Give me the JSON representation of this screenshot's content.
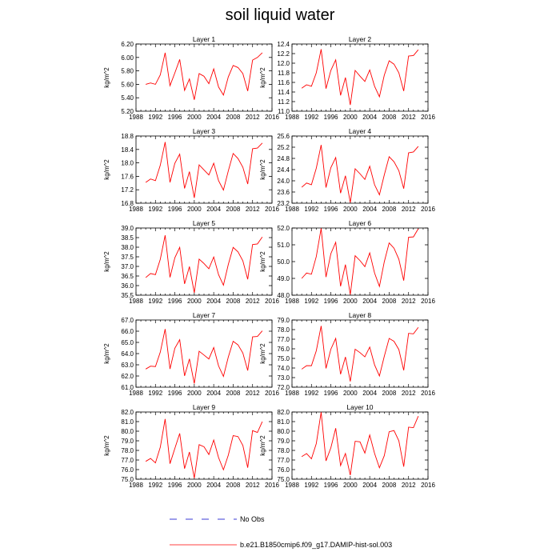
{
  "page_title": "soil liquid water",
  "colors": {
    "series": "#ff0000",
    "obs": "#3b3bd6",
    "axis": "#000000"
  },
  "legend": {
    "obs_label": "No Obs",
    "model_label": "b.e21.B1850cmip6.f09_g17.DAMIP-hist-sol.003"
  },
  "chart_data": [
    {
      "type": "line",
      "title": "Layer 1",
      "ylabel": "kg/m^2",
      "xlim": [
        1988,
        2016
      ],
      "xticks": [
        1988,
        1992,
        1996,
        2000,
        2004,
        2008,
        2012,
        2016
      ],
      "ylim": [
        5.2,
        6.2
      ],
      "yticks": [
        "5.20",
        "5.40",
        "5.60",
        "5.80",
        "6.00",
        "6.20"
      ],
      "x": [
        1990,
        1991,
        1992,
        1993,
        1994,
        1995,
        1996,
        1997,
        1998,
        1999,
        2000,
        2001,
        2002,
        2003,
        2004,
        2005,
        2006,
        2007,
        2008,
        2009,
        2010,
        2011,
        2012,
        2013,
        2014
      ],
      "series": [
        {
          "values": [
            5.6,
            5.62,
            5.6,
            5.74,
            6.07,
            5.58,
            5.77,
            5.97,
            5.51,
            5.68,
            5.37,
            5.76,
            5.72,
            5.61,
            5.83,
            5.56,
            5.44,
            5.71,
            5.88,
            5.85,
            5.76,
            5.5,
            5.96,
            6.0,
            6.07
          ]
        }
      ]
    },
    {
      "type": "line",
      "title": "Layer 2",
      "ylabel": "kg/m^2",
      "xlim": [
        1988,
        2016
      ],
      "xticks": [
        1988,
        1992,
        1996,
        2000,
        2004,
        2008,
        2012,
        2016
      ],
      "ylim": [
        11.0,
        12.4
      ],
      "yticks": [
        "11.0",
        "11.2",
        "11.4",
        "11.6",
        "11.8",
        "12.0",
        "12.2",
        "12.4"
      ],
      "x": [
        1990,
        1991,
        1992,
        1993,
        1994,
        1995,
        1996,
        1997,
        1998,
        1999,
        2000,
        2001,
        2002,
        2003,
        2004,
        2005,
        2006,
        2007,
        2008,
        2009,
        2010,
        2011,
        2012,
        2013,
        2014
      ],
      "series": [
        {
          "values": [
            11.48,
            11.55,
            11.52,
            11.8,
            12.29,
            11.47,
            11.85,
            12.07,
            11.33,
            11.7,
            11.13,
            11.85,
            11.73,
            11.62,
            11.86,
            11.52,
            11.3,
            11.75,
            12.05,
            11.98,
            11.8,
            11.42,
            12.15,
            12.16,
            12.28
          ]
        }
      ]
    },
    {
      "type": "line",
      "title": "Layer 3",
      "ylabel": "kg/m^2",
      "xlim": [
        1988,
        2016
      ],
      "xticks": [
        1988,
        1992,
        1996,
        2000,
        2004,
        2008,
        2012,
        2016
      ],
      "ylim": [
        16.8,
        18.8
      ],
      "yticks": [
        "16.8",
        "17.2",
        "17.6",
        "18.0",
        "18.4",
        "18.8"
      ],
      "x": [
        1990,
        1991,
        1992,
        1993,
        1994,
        1995,
        1996,
        1997,
        1998,
        1999,
        2000,
        2001,
        2002,
        2003,
        2004,
        2005,
        2006,
        2007,
        2008,
        2009,
        2010,
        2011,
        2012,
        2013,
        2014
      ],
      "series": [
        {
          "values": [
            17.42,
            17.52,
            17.47,
            17.93,
            18.62,
            17.42,
            17.99,
            18.26,
            17.24,
            17.74,
            16.96,
            17.94,
            17.79,
            17.64,
            17.99,
            17.47,
            17.19,
            17.76,
            18.28,
            18.13,
            17.87,
            17.37,
            18.42,
            18.44,
            18.59
          ]
        }
      ]
    },
    {
      "type": "line",
      "title": "Layer 4",
      "ylabel": "kg/m^2",
      "xlim": [
        1988,
        2016
      ],
      "xticks": [
        1988,
        1992,
        1996,
        2000,
        2004,
        2008,
        2012,
        2016
      ],
      "ylim": [
        23.2,
        25.6
      ],
      "yticks": [
        "23.2",
        "23.6",
        "24.0",
        "24.4",
        "24.8",
        "25.2",
        "25.6"
      ],
      "x": [
        1990,
        1991,
        1992,
        1993,
        1994,
        1995,
        1996,
        1997,
        1998,
        1999,
        2000,
        2001,
        2002,
        2003,
        2004,
        2005,
        2006,
        2007,
        2008,
        2009,
        2010,
        2011,
        2012,
        2013,
        2014
      ],
      "series": [
        {
          "values": [
            23.77,
            23.92,
            23.86,
            24.45,
            25.28,
            23.76,
            24.47,
            24.83,
            23.56,
            24.18,
            23.22,
            24.43,
            24.25,
            24.05,
            24.52,
            23.86,
            23.5,
            24.21,
            24.86,
            24.68,
            24.36,
            23.72,
            25.0,
            25.03,
            25.23
          ]
        }
      ]
    },
    {
      "type": "line",
      "title": "Layer 5",
      "ylabel": "kg/m^2",
      "xlim": [
        1988,
        2016
      ],
      "xticks": [
        1988,
        1992,
        1996,
        2000,
        2004,
        2008,
        2012,
        2016
      ],
      "ylim": [
        35.5,
        39.0
      ],
      "yticks": [
        "35.5",
        "36.0",
        "36.5",
        "37.0",
        "37.5",
        "38.0",
        "38.5",
        "39.0"
      ],
      "x": [
        1990,
        1991,
        1992,
        1993,
        1994,
        1995,
        1996,
        1997,
        1998,
        1999,
        2000,
        2001,
        2002,
        2003,
        2004,
        2005,
        2006,
        2007,
        2008,
        2009,
        2010,
        2011,
        2012,
        2013,
        2014
      ],
      "series": [
        {
          "values": [
            36.42,
            36.63,
            36.57,
            37.37,
            38.62,
            36.43,
            37.45,
            37.99,
            36.09,
            36.99,
            35.63,
            37.38,
            37.15,
            36.88,
            37.49,
            36.57,
            36.02,
            37.1,
            37.99,
            37.76,
            37.29,
            36.33,
            38.14,
            38.17,
            38.53
          ]
        }
      ]
    },
    {
      "type": "line",
      "title": "Layer 6",
      "ylabel": "kg/m^2",
      "xlim": [
        1988,
        2016
      ],
      "xticks": [
        1988,
        1992,
        1996,
        2000,
        2004,
        2008,
        2012,
        2016
      ],
      "ylim": [
        48.0,
        52.0
      ],
      "yticks": [
        "48.0",
        "49.0",
        "50.0",
        "51.0",
        "52.0"
      ],
      "x": [
        1990,
        1991,
        1992,
        1993,
        1994,
        1995,
        1996,
        1997,
        1998,
        1999,
        2000,
        2001,
        2002,
        2003,
        2004,
        2005,
        2006,
        2007,
        2008,
        2009,
        2010,
        2011,
        2012,
        2013,
        2014
      ],
      "series": [
        {
          "values": [
            49.0,
            49.32,
            49.25,
            50.3,
            51.98,
            49.08,
            50.47,
            51.15,
            48.53,
            49.82,
            48.04,
            50.35,
            50.06,
            49.7,
            50.52,
            49.32,
            48.52,
            49.99,
            51.11,
            50.8,
            50.14,
            48.87,
            51.45,
            51.47,
            51.96
          ]
        }
      ]
    },
    {
      "type": "line",
      "title": "Layer 7",
      "ylabel": "kg/m^2",
      "xlim": [
        1988,
        2016
      ],
      "xticks": [
        1988,
        1992,
        1996,
        2000,
        2004,
        2008,
        2012,
        2016
      ],
      "ylim": [
        61.0,
        67.0
      ],
      "yticks": [
        "61.0",
        "62.0",
        "63.0",
        "64.0",
        "65.0",
        "66.0",
        "67.0"
      ],
      "x": [
        1990,
        1991,
        1992,
        1993,
        1994,
        1995,
        1996,
        1997,
        1998,
        1999,
        2000,
        2001,
        2002,
        2003,
        2004,
        2005,
        2006,
        2007,
        2008,
        2009,
        2010,
        2011,
        2012,
        2013,
        2014
      ],
      "series": [
        {
          "values": [
            62.62,
            62.88,
            62.84,
            64.13,
            66.19,
            62.63,
            64.48,
            65.24,
            62.01,
            63.53,
            61.33,
            64.21,
            63.87,
            63.52,
            64.54,
            62.9,
            61.96,
            63.69,
            65.1,
            64.78,
            64.05,
            62.49,
            65.5,
            65.53,
            66.03
          ]
        }
      ]
    },
    {
      "type": "line",
      "title": "Layer 8",
      "ylabel": "kg/m^2",
      "xlim": [
        1988,
        2016
      ],
      "xticks": [
        1988,
        1992,
        1996,
        2000,
        2004,
        2008,
        2012,
        2016
      ],
      "ylim": [
        72.0,
        79.0
      ],
      "yticks": [
        "72.0",
        "73.0",
        "74.0",
        "75.0",
        "76.0",
        "77.0",
        "78.0",
        "79.0"
      ],
      "x": [
        1990,
        1991,
        1992,
        1993,
        1994,
        1995,
        1996,
        1997,
        1998,
        1999,
        2000,
        2001,
        2002,
        2003,
        2004,
        2005,
        2006,
        2007,
        2008,
        2009,
        2010,
        2011,
        2012,
        2013,
        2014
      ],
      "series": [
        {
          "values": [
            73.88,
            74.24,
            74.24,
            75.79,
            78.38,
            73.96,
            75.96,
            77.08,
            73.35,
            75.15,
            72.6,
            75.96,
            75.6,
            75.16,
            76.18,
            74.33,
            73.17,
            75.22,
            77.08,
            76.78,
            75.92,
            73.76,
            77.61,
            77.56,
            78.23
          ]
        }
      ]
    },
    {
      "type": "line",
      "title": "Layer 9",
      "ylabel": "kg/m^2",
      "xlim": [
        1988,
        2016
      ],
      "xticks": [
        1988,
        1992,
        1996,
        2000,
        2004,
        2008,
        2012,
        2016
      ],
      "ylim": [
        75.0,
        82.0
      ],
      "yticks": [
        "75.0",
        "76.0",
        "77.0",
        "78.0",
        "79.0",
        "80.0",
        "81.0",
        "82.0"
      ],
      "x": [
        1990,
        1991,
        1992,
        1993,
        1994,
        1995,
        1996,
        1997,
        1998,
        1999,
        2000,
        2001,
        2002,
        2003,
        2004,
        2005,
        2006,
        2007,
        2008,
        2009,
        2010,
        2011,
        2012,
        2013,
        2014
      ],
      "series": [
        {
          "values": [
            76.86,
            77.16,
            76.7,
            78.33,
            81.27,
            76.62,
            78.21,
            79.77,
            76.1,
            77.83,
            75.11,
            78.6,
            78.38,
            77.57,
            79.08,
            77.25,
            75.98,
            77.5,
            79.54,
            79.44,
            78.52,
            76.2,
            80.06,
            79.87,
            80.99
          ]
        }
      ]
    },
    {
      "type": "line",
      "title": "Layer 10",
      "ylabel": "kg/m^2",
      "xlim": [
        1988,
        2016
      ],
      "xticks": [
        1988,
        1992,
        1996,
        2000,
        2004,
        2008,
        2012,
        2016
      ],
      "ylim": [
        75.0,
        82.0
      ],
      "yticks": [
        "75.0",
        "76.0",
        "77.0",
        "78.0",
        "79.0",
        "80.0",
        "81.0",
        "82.0"
      ],
      "x": [
        1990,
        1991,
        1992,
        1993,
        1994,
        1995,
        1996,
        1997,
        1998,
        1999,
        2000,
        2001,
        2002,
        2003,
        2004,
        2005,
        2006,
        2007,
        2008,
        2009,
        2010,
        2011,
        2012,
        2013,
        2014
      ],
      "series": [
        {
          "values": [
            77.35,
            77.67,
            77.12,
            78.71,
            81.98,
            76.91,
            78.27,
            80.31,
            76.42,
            77.68,
            75.42,
            78.95,
            78.89,
            77.72,
            79.6,
            77.69,
            76.19,
            77.45,
            79.94,
            80.07,
            79.0,
            76.31,
            80.42,
            80.37,
            81.57
          ]
        }
      ]
    }
  ]
}
